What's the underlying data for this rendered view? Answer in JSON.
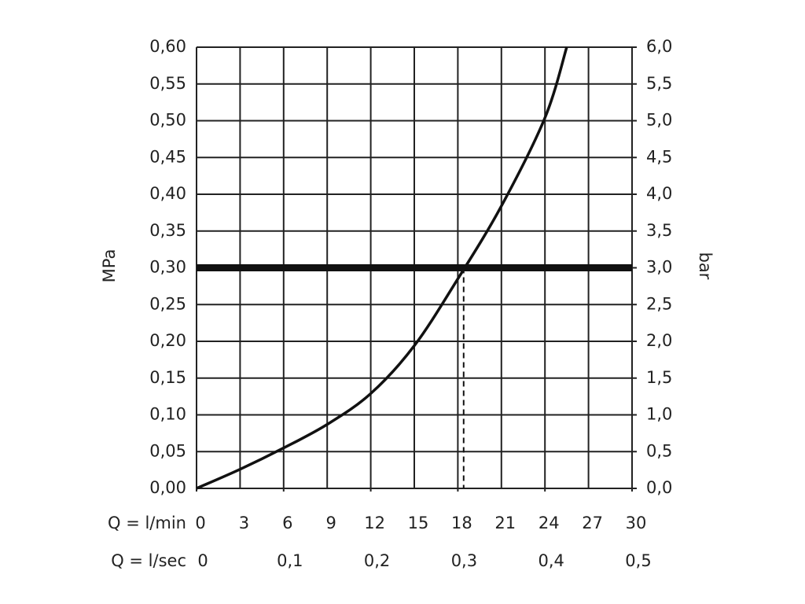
{
  "chart_data": {
    "type": "line",
    "x_label": "Q = l/min",
    "x2_label": "Q = l/sec",
    "y_label": "MPa",
    "y2_label": "bar",
    "x": [
      0,
      3,
      6,
      9,
      12,
      15,
      18,
      21,
      24,
      25.5
    ],
    "values": [
      0,
      0.026,
      0.055,
      0.087,
      0.129,
      0.194,
      0.285,
      0.384,
      0.504,
      0.6
    ],
    "color": "#111",
    "xlim": [
      0,
      30
    ],
    "xticks": [
      0,
      3,
      6,
      9,
      12,
      15,
      18,
      21,
      24,
      27,
      30
    ],
    "x2lim": [
      0,
      0.5
    ],
    "x2ticks": [
      {
        "value": 0,
        "label": "0"
      },
      {
        "value": 0.1,
        "label": "0,1"
      },
      {
        "value": 0.2,
        "label": "0,2"
      },
      {
        "value": 0.3,
        "label": "0,3"
      },
      {
        "value": 0.4,
        "label": "0,4"
      },
      {
        "value": 0.5,
        "label": "0,5"
      }
    ],
    "ylim": [
      0,
      0.6
    ],
    "yticks": [
      {
        "value": 0,
        "label": "0,00"
      },
      {
        "value": 0.05,
        "label": "0,05"
      },
      {
        "value": 0.1,
        "label": "0,10"
      },
      {
        "value": 0.15,
        "label": "0,15"
      },
      {
        "value": 0.2,
        "label": "0,20"
      },
      {
        "value": 0.25,
        "label": "0,25"
      },
      {
        "value": 0.3,
        "label": "0,30"
      },
      {
        "value": 0.35,
        "label": "0,35"
      },
      {
        "value": 0.4,
        "label": "0,40"
      },
      {
        "value": 0.45,
        "label": "0,45"
      },
      {
        "value": 0.5,
        "label": "0,50"
      },
      {
        "value": 0.55,
        "label": "0,55"
      },
      {
        "value": 0.6,
        "label": "0,60"
      }
    ],
    "y2lim": [
      0,
      6
    ],
    "y2ticks": [
      {
        "value": 0,
        "label": "0,0"
      },
      {
        "value": 0.5,
        "label": "0,5"
      },
      {
        "value": 1,
        "label": "1,0"
      },
      {
        "value": 1.5,
        "label": "1,5"
      },
      {
        "value": 2,
        "label": "2,0"
      },
      {
        "value": 2.5,
        "label": "2,5"
      },
      {
        "value": 3,
        "label": "3,0"
      },
      {
        "value": 3.5,
        "label": "3,5"
      },
      {
        "value": 4,
        "label": "4,0"
      },
      {
        "value": 4.5,
        "label": "4,5"
      },
      {
        "value": 5,
        "label": "5,0"
      },
      {
        "value": 5.5,
        "label": "5,5"
      },
      {
        "value": 6,
        "label": "6,0"
      }
    ],
    "grid": true,
    "reference_line": {
      "y": 0.3,
      "x": 18.4
    }
  }
}
